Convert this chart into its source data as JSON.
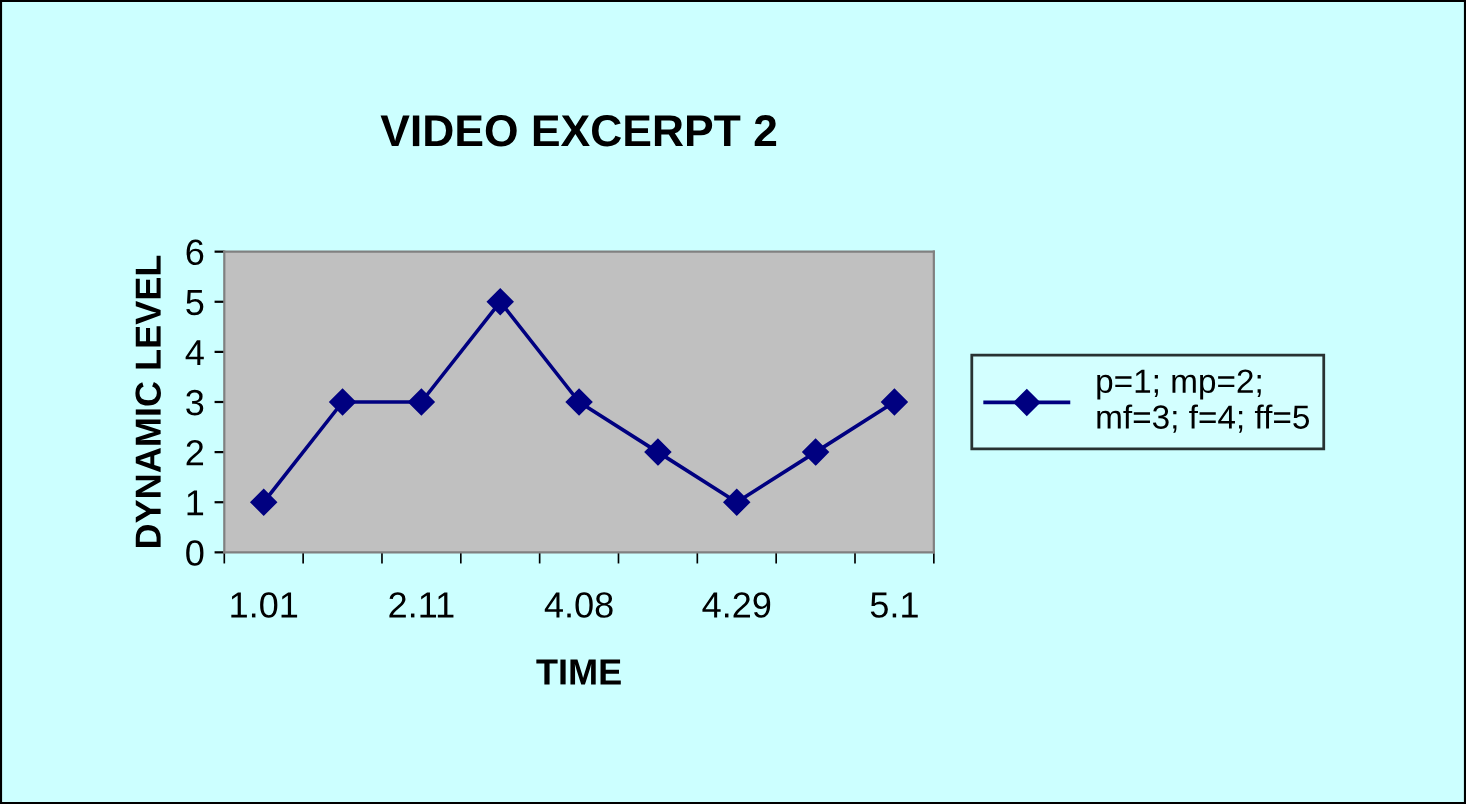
{
  "chart_data": {
    "type": "line",
    "title": "VIDEO EXCERPT 2",
    "xlabel": "TIME",
    "ylabel": "DYNAMIC LEVEL",
    "categories": [
      "1.01",
      null,
      "2.11",
      null,
      "4.08",
      null,
      "4.29",
      null,
      "5.1"
    ],
    "series": [
      {
        "name": "p=1; mp=2;\nmf=3; f=4; ff=5",
        "color": "#000080",
        "values": [
          1,
          3,
          3,
          5,
          3,
          2,
          1,
          2,
          3
        ]
      }
    ],
    "ylim": [
      0,
      6
    ],
    "yticks": [
      0,
      1,
      2,
      3,
      4,
      5,
      6
    ],
    "grid": false,
    "legend": "right",
    "marker": "diamond",
    "line_style": "solid"
  }
}
